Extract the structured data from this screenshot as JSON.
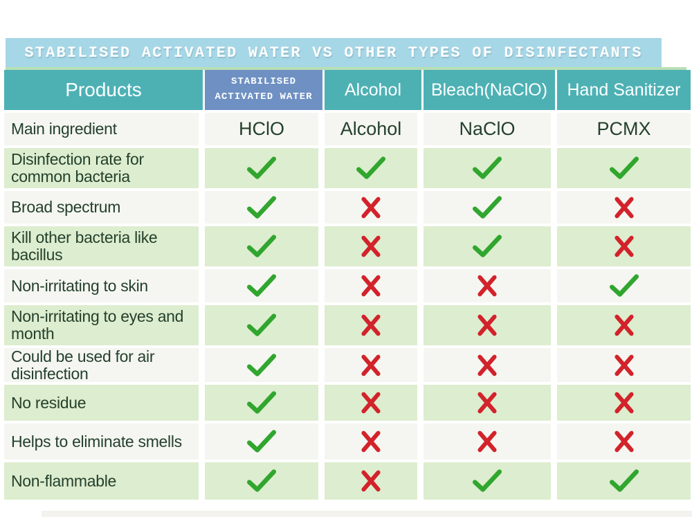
{
  "chart_data": {
    "type": "table",
    "title": "STABILISED ACTIVATED WATER VS OTHER TYPES OF DISINFECTANTS",
    "columns": [
      "Products",
      "STABILISED ACTIVATED WATER",
      "Alcohol",
      "Bleach(NaClO)",
      "Hand Sanitizer"
    ],
    "rows": [
      [
        "Main ingredient",
        "HClO",
        "Alcohol",
        "NaClO",
        "PCMX"
      ],
      [
        "Disinfection rate for common bacteria",
        "✓",
        "✓",
        "✓",
        "✓"
      ],
      [
        "Broad spectrum",
        "✓",
        "✗",
        "✓",
        "✗"
      ],
      [
        "Kill other bacteria like bacillus",
        "✓",
        "✗",
        "✓",
        "✗"
      ],
      [
        "Non-irritating to skin",
        "✓",
        "✗",
        "✗",
        "✓"
      ],
      [
        "Non-irritating to eyes and month",
        "✓",
        "✗",
        "✗",
        "✗"
      ],
      [
        "Could be used for air disinfection",
        "✓",
        "✗",
        "✗",
        "✗"
      ],
      [
        "No residue",
        "✓",
        "✗",
        "✗",
        "✗"
      ],
      [
        "Helps to eliminate smells",
        "✓",
        "✗",
        "✗",
        "✗"
      ],
      [
        "Non-flammable",
        "✓",
        "✗",
        "✓",
        "✓"
      ]
    ]
  },
  "title_bar": {
    "text": "STABILISED ACTIVATED WATER VS OTHER TYPES OF DISINFECTANTS"
  },
  "header": {
    "products": "Products",
    "saw_line1": "STABILISED",
    "saw_line2": "ACTIVATED WATER",
    "alcohol": "Alcohol",
    "bleach": "Bleach(NaClO)",
    "hand_sanitizer": "Hand Sanitizer"
  },
  "ingredient_row": {
    "label": "Main ingredient",
    "values": [
      "HClO",
      "Alcohol",
      "NaClO",
      "PCMX"
    ]
  },
  "feature_rows": [
    {
      "label": "Disinfection rate for common bacteria",
      "marks": [
        "check",
        "check",
        "check",
        "check"
      ]
    },
    {
      "label": "Broad spectrum",
      "marks": [
        "check",
        "cross",
        "check",
        "cross"
      ]
    },
    {
      "label": "Kill other bacteria like bacillus",
      "marks": [
        "check",
        "cross",
        "check",
        "cross"
      ]
    },
    {
      "label": "Non-irritating to skin",
      "marks": [
        "check",
        "cross",
        "cross",
        "check"
      ]
    },
    {
      "label": "Non-irritating to eyes and month",
      "marks": [
        "check",
        "cross",
        "cross",
        "cross"
      ]
    },
    {
      "label": "Could be used for air disinfection",
      "marks": [
        "check",
        "cross",
        "cross",
        "cross"
      ]
    },
    {
      "label": "No residue",
      "marks": [
        "check",
        "cross",
        "cross",
        "cross"
      ]
    },
    {
      "label": "Helps to eliminate smells",
      "marks": [
        "check",
        "cross",
        "cross",
        "cross"
      ]
    },
    {
      "label": "Non-flammable",
      "marks": [
        "check",
        "cross",
        "check",
        "check"
      ]
    }
  ],
  "colors": {
    "title_blue": "#a6d7e6",
    "header_teal": "#4db1b4",
    "saw_blue": "#6e90c3",
    "strip_green": "#b9dfb4",
    "row_green": "#ddedcf",
    "row_plain": "#f5f6f1",
    "check_green": "#31a62f",
    "cross_red": "#d2232b",
    "label_ink": "#24402c"
  }
}
